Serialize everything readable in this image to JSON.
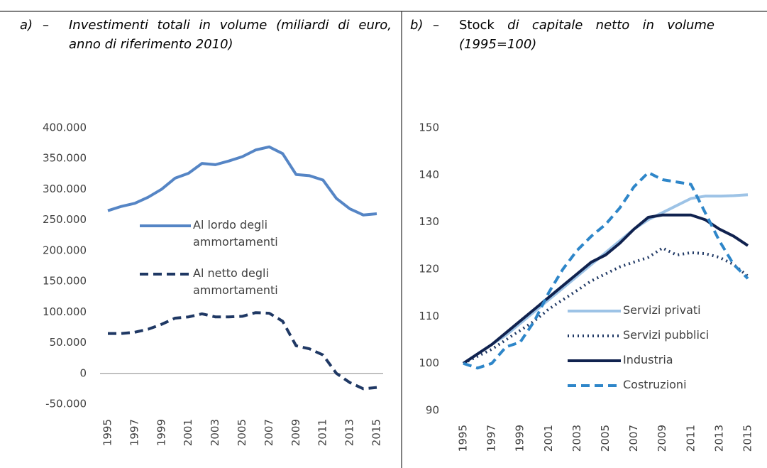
{
  "chart_data": [
    {
      "type": "line",
      "label": "a)",
      "dash": "–",
      "title": "Investimenti totali in volume (miliardi di euro, anno di riferimento 2010)",
      "categories": [
        "1995",
        null,
        "1997",
        null,
        "1999",
        null,
        "2001",
        null,
        "2003",
        null,
        "2005",
        null,
        "2007",
        null,
        "2009",
        null,
        "2011",
        null,
        "2013",
        null,
        "2015"
      ],
      "ylim": [
        -50000,
        400000
      ],
      "yticks": [
        {
          "value": -50000,
          "label": "-50.000"
        },
        0,
        {
          "value": 50000,
          "label": "50.000"
        },
        {
          "value": 100000,
          "label": "100.000"
        },
        {
          "value": 150000,
          "label": "150.000"
        },
        {
          "value": 200000,
          "label": "200.000"
        },
        {
          "value": 250000,
          "label": "250.000"
        },
        {
          "value": 300000,
          "label": "300.000"
        },
        {
          "value": 350000,
          "label": "350.000"
        },
        {
          "value": 400000,
          "label": "400.000"
        }
      ],
      "axis_line": true,
      "series": [
        {
          "name": "Al lordo degli ammortamenti",
          "color": "#5585c5",
          "style": "solid",
          "values": [
            265000,
            272000,
            277000,
            287000,
            300000,
            318000,
            326000,
            342000,
            340000,
            346000,
            353000,
            364000,
            369000,
            358000,
            324000,
            322000,
            315000,
            285000,
            268000,
            258000,
            260000
          ]
        },
        {
          "name": "Al netto degli ammortamenti",
          "color": "#1f3864",
          "style": "dashed",
          "values": [
            65000,
            65000,
            67000,
            72000,
            80000,
            90000,
            92000,
            97000,
            92000,
            92000,
            93000,
            99000,
            98000,
            85000,
            45000,
            40000,
            30000,
            0,
            -15000,
            -25000,
            -23000
          ]
        }
      ]
    },
    {
      "type": "line",
      "label": "b)",
      "dash": "–",
      "title_lead": "Stock",
      "title": "di capitale netto in volume (1995=100)",
      "categories": [
        "1995",
        null,
        "1997",
        null,
        "1999",
        null,
        "2001",
        null,
        "2003",
        null,
        "2005",
        null,
        "2007",
        null,
        "2009",
        null,
        "2011",
        null,
        "2013",
        null,
        "2015"
      ],
      "ylim": [
        90,
        150
      ],
      "yticks": [
        90,
        100,
        110,
        120,
        130,
        140,
        150
      ],
      "axis_line": false,
      "series": [
        {
          "name": "Servizi privati",
          "color": "#9dc3e6",
          "style": "solid",
          "values": [
            100,
            102,
            104,
            106,
            108.5,
            111,
            113.5,
            116,
            118.5,
            121,
            123.5,
            126,
            128.5,
            130.5,
            132,
            133.5,
            135,
            135.5,
            135.5,
            135.6,
            135.8
          ]
        },
        {
          "name": "Servizi pubblici",
          "color": "#1f3864",
          "style": "dotted",
          "values": [
            100,
            101.5,
            103,
            105,
            107,
            109,
            111.5,
            113.5,
            115.5,
            117.5,
            119,
            120.5,
            121.5,
            122.5,
            124.5,
            123,
            123.5,
            123.3,
            122.5,
            121,
            118.5
          ]
        },
        {
          "name": "Industria",
          "color": "#10224f",
          "style": "solid",
          "values": [
            100,
            102,
            104,
            106.5,
            109,
            111.5,
            114,
            116.5,
            119,
            121.5,
            123,
            125.5,
            128.5,
            131,
            131.5,
            131.5,
            131.5,
            130.5,
            128.5,
            127,
            125
          ]
        },
        {
          "name": "Costruzioni",
          "color": "#2e86c9",
          "style": "dashed",
          "values": [
            100,
            99,
            100,
            103.5,
            104.5,
            109,
            115,
            120,
            124,
            127,
            129.5,
            133,
            137.5,
            140.5,
            139,
            138.5,
            138,
            132,
            126,
            121,
            118
          ]
        }
      ]
    }
  ]
}
